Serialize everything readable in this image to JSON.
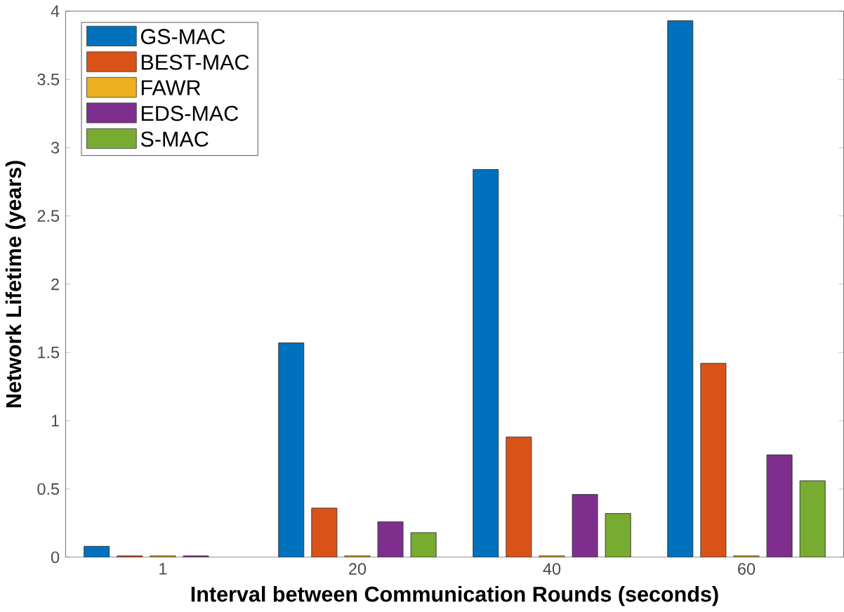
{
  "chart_data": {
    "type": "bar",
    "xlabel": "Interval between Communication Rounds (seconds)",
    "ylabel": "Network Lifetime (years)",
    "categories": [
      "1",
      "20",
      "40",
      "60"
    ],
    "series": [
      {
        "name": "GS-MAC",
        "color": "#0072bd",
        "values": [
          0.08,
          1.57,
          2.84,
          3.93
        ]
      },
      {
        "name": "BEST-MAC",
        "color": "#d95319",
        "values": [
          0.01,
          0.36,
          0.88,
          1.42
        ]
      },
      {
        "name": "FAWR",
        "color": "#edb120",
        "values": [
          0.01,
          0.01,
          0.01,
          0.01
        ]
      },
      {
        "name": "EDS-MAC",
        "color": "#7e2f8e",
        "values": [
          0.01,
          0.26,
          0.46,
          0.75
        ]
      },
      {
        "name": "S-MAC",
        "color": "#77ac30",
        "values": [
          null,
          0.18,
          0.32,
          0.56
        ]
      }
    ],
    "ylim": [
      0,
      4
    ],
    "yticks": [
      0,
      0.5,
      1,
      1.5,
      2,
      2.5,
      3,
      3.5,
      4
    ],
    "legend": "top left",
    "grid": false
  }
}
